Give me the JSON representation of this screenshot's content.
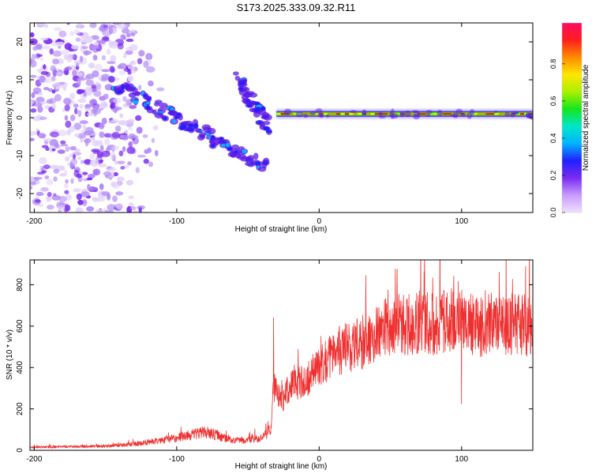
{
  "title": "S173.2025.333.09.32.R11",
  "chart_data": [
    {
      "type": "heatmap",
      "name": "spectrogram",
      "xlabel": "Height of straight line (km)",
      "ylabel": "Frequency (Hz)",
      "xlim": [
        -203,
        150
      ],
      "ylim": [
        -25,
        25
      ],
      "xticks": [
        -200,
        -100,
        0,
        100
      ],
      "yticks": [
        -20,
        -10,
        0,
        10,
        20
      ],
      "grid": false,
      "colorbar": {
        "label": "Normalized spectral amplitude",
        "range": [
          0,
          1
        ],
        "ticks": [
          "0.0",
          "0.2",
          "0.4",
          "0.6",
          "0.8"
        ],
        "colors": [
          "#f0e0ff",
          "#c89bff",
          "#7a2cf0",
          "#2020ff",
          "#00b4ff",
          "#00e6c8",
          "#14e61e",
          "#aaf000",
          "#ffe600",
          "#ff8c00",
          "#ff1e1e",
          "#ff0a64"
        ]
      },
      "features": [
        {
          "name": "noise-region",
          "x_range": [
            -203,
            -130
          ],
          "freq_range": [
            -25,
            25
          ],
          "amplitude": 0.1
        },
        {
          "name": "diagonal-branch-1",
          "from": [
            -145,
            9
          ],
          "to": [
            -38,
            -13
          ],
          "amplitude": 0.28
        },
        {
          "name": "diagonal-branch-2",
          "from": [
            -57,
            11
          ],
          "to": [
            -36,
            -3
          ],
          "amplitude": 0.25
        },
        {
          "name": "carrier-line",
          "x_range": [
            -30,
            150
          ],
          "freq": 1.0,
          "amplitude": 0.95
        }
      ]
    },
    {
      "type": "line",
      "name": "snr",
      "xlabel": "Height of straight line (km)",
      "ylabel": "SNR (10 * v/v)",
      "xlim": [
        -203,
        150
      ],
      "ylim": [
        0,
        920
      ],
      "xticks": [
        -200,
        -100,
        0,
        100
      ],
      "yticks": [
        0,
        200,
        400,
        600,
        800
      ],
      "grid": false,
      "color": "#ee3030",
      "series": [
        {
          "name": "SNR",
          "x": [
            -203,
            -150,
            -130,
            -100,
            -80,
            -60,
            -40,
            -34,
            -32,
            -25,
            -20,
            -10,
            0,
            10,
            20,
            30,
            40,
            50,
            60,
            70,
            80,
            90,
            100,
            110,
            120,
            130,
            140,
            150
          ],
          "y": [
            15,
            20,
            30,
            60,
            90,
            45,
            60,
            100,
            300,
            250,
            320,
            330,
            410,
            460,
            500,
            520,
            560,
            600,
            610,
            620,
            610,
            630,
            620,
            600,
            610,
            600,
            620,
            580
          ]
        }
      ],
      "peaks": [
        {
          "x": -32,
          "y": 640
        },
        {
          "x": 100,
          "y": 920
        },
        {
          "x": 100,
          "y": 225
        }
      ]
    }
  ]
}
